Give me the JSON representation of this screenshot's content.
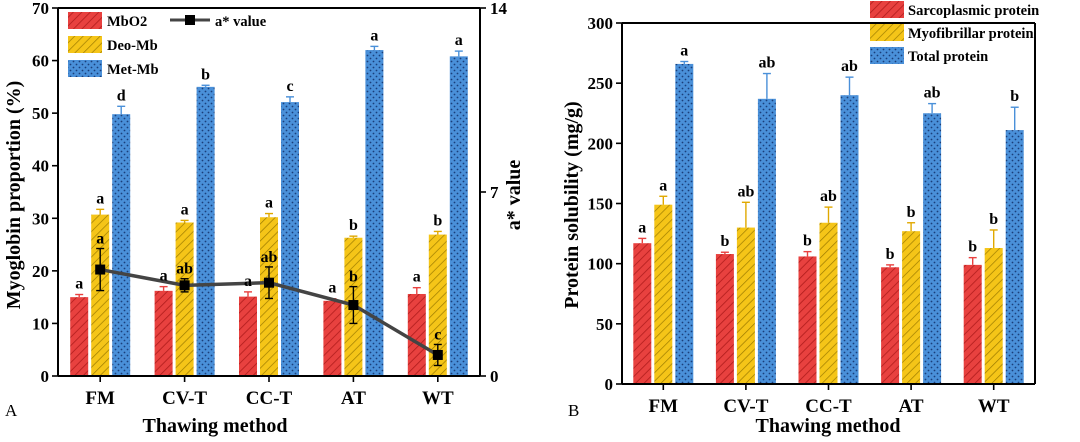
{
  "chart_data": [
    {
      "panel": "A",
      "type": "bar",
      "xlabel": "Thawing method",
      "ylabel": "Myoglobin proportion (%)",
      "ylabel_right": "a* value",
      "ylim": [
        0,
        70
      ],
      "y_ticks": [
        0,
        10,
        20,
        30,
        40,
        50,
        60,
        70
      ],
      "ylim_right": [
        0,
        14
      ],
      "y_ticks_right": [
        0,
        7,
        14
      ],
      "categories": [
        "FM",
        "CV-T",
        "CC-T",
        "AT",
        "WT"
      ],
      "legend_position": "top-left",
      "grid": false,
      "series": [
        {
          "name": "MbO2",
          "kind": "bar",
          "color": "#e8413f",
          "pattern": "diagonal",
          "values": [
            15.0,
            16.2,
            15.1,
            14.3,
            15.6
          ],
          "errors": [
            0.5,
            0.8,
            0.9,
            0.4,
            1.2
          ],
          "letters": [
            "a",
            "a",
            "a",
            "a",
            "a"
          ]
        },
        {
          "name": "Deo-Mb",
          "kind": "bar",
          "color": "#f5c518",
          "pattern": "diagonal",
          "values": [
            30.7,
            29.2,
            30.2,
            26.3,
            26.9
          ],
          "errors": [
            1.0,
            0.4,
            0.7,
            0.3,
            0.6
          ],
          "letters": [
            "a",
            "a",
            "a",
            "b",
            "b"
          ]
        },
        {
          "name": "Met-Mb",
          "kind": "bar",
          "color": "#4a90d9",
          "pattern": "dots",
          "values": [
            49.8,
            55.0,
            52.1,
            62.0,
            60.8
          ],
          "errors": [
            1.5,
            0.3,
            1.0,
            0.7,
            1.0
          ],
          "letters": [
            "d",
            "b",
            "c",
            "a",
            "a"
          ]
        },
        {
          "name": "a* value",
          "kind": "line",
          "axis": "right",
          "color": "#444444",
          "values": [
            4.05,
            3.45,
            3.55,
            2.7,
            0.8
          ],
          "errors": [
            0.8,
            0.25,
            0.6,
            0.7,
            0.4
          ],
          "letters": [
            "a",
            "ab",
            "ab",
            "b",
            "c"
          ]
        }
      ]
    },
    {
      "panel": "B",
      "type": "bar",
      "xlabel": "Thawing method",
      "ylabel": "Protein solubility (mg/g)",
      "ylim": [
        0,
        300
      ],
      "y_ticks": [
        0,
        50,
        100,
        150,
        200,
        250,
        300
      ],
      "categories": [
        "FM",
        "CV-T",
        "CC-T",
        "AT",
        "WT"
      ],
      "legend_position": "top-right",
      "grid": false,
      "series": [
        {
          "name": "Sarcoplasmic protein",
          "color": "#e8413f",
          "pattern": "diagonal",
          "values": [
            117,
            108,
            106,
            97,
            99
          ],
          "errors": [
            4,
            1.5,
            4,
            2,
            6
          ],
          "letters": [
            "a",
            "b",
            "b",
            "b",
            "b"
          ]
        },
        {
          "name": "Myofibrillar protein",
          "color": "#f5c518",
          "pattern": "diagonal",
          "values": [
            149,
            130,
            134,
            127,
            113
          ],
          "errors": [
            7,
            21,
            13,
            7,
            15
          ],
          "letters": [
            "a",
            "ab",
            "ab",
            "b",
            "b"
          ]
        },
        {
          "name": "Total protein",
          "color": "#4a90d9",
          "pattern": "dots",
          "values": [
            266,
            237,
            240,
            225,
            211
          ],
          "errors": [
            2,
            21,
            15,
            8,
            19
          ],
          "letters": [
            "a",
            "ab",
            "ab",
            "ab",
            "b"
          ]
        }
      ]
    }
  ]
}
